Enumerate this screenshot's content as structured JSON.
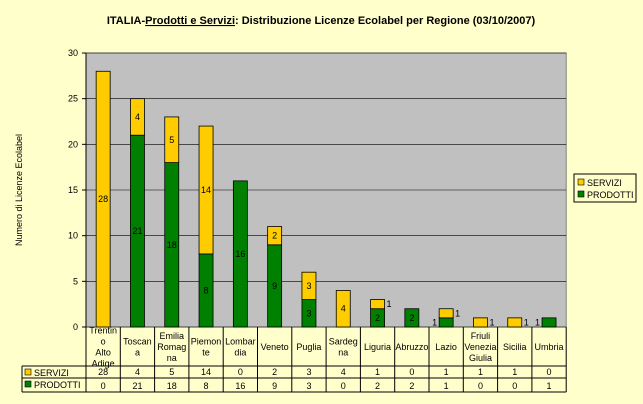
{
  "chart_data": {
    "type": "bar",
    "stacked": true,
    "title_parts": [
      "ITALIA-",
      "Prodotti e Servizi",
      ": Distribuzione Licenze Ecolabel per Regione (03/10/2007)"
    ],
    "ylabel": "Numero di Licenze Ecolabel",
    "xlabel": "",
    "ylim": [
      0,
      30
    ],
    "yticks": [
      0,
      5,
      10,
      15,
      20,
      25,
      30
    ],
    "grid": true,
    "legend_position": "right",
    "categories": [
      "Trentin o Alto Adige",
      "Toscan a",
      "Emilia Romag na",
      "Piemon te",
      "Lombar dia",
      "Veneto",
      "Puglia",
      "Sardeg na",
      "Liguria",
      "Abruzzo",
      "Lazio",
      "Friuli Venezia Giulia",
      "Sicilia",
      "Umbria"
    ],
    "series": [
      {
        "name": "SERVIZI",
        "color": "#FFCC00",
        "values": [
          28,
          4,
          5,
          14,
          0,
          2,
          3,
          4,
          1,
          0,
          1,
          1,
          1,
          0
        ]
      },
      {
        "name": "PRODOTTI",
        "color": "#008000",
        "values": [
          0,
          21,
          18,
          8,
          16,
          9,
          3,
          0,
          2,
          2,
          1,
          0,
          0,
          1
        ]
      }
    ],
    "data_table": true,
    "colors": {
      "background": "#FFFFCC",
      "plot_area": "#C0C0C0"
    }
  }
}
